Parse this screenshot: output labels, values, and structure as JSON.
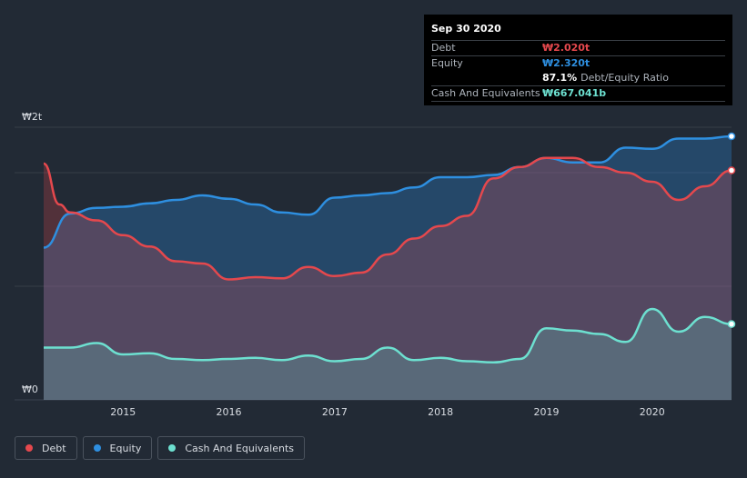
{
  "tooltip": {
    "date": "Sep 30 2020",
    "debt_label": "Debt",
    "debt_value": "₩2.020t",
    "equity_label": "Equity",
    "equity_value": "₩2.320t",
    "ratio_value": "87.1%",
    "ratio_label": "Debt/Equity Ratio",
    "cash_label": "Cash And Equivalents",
    "cash_value": "₩667.041b"
  },
  "legend": [
    {
      "label": "Debt",
      "color": "#e5484d"
    },
    {
      "label": "Equity",
      "color": "#2e8fe0"
    },
    {
      "label": "Cash And Equivalents",
      "color": "#6de0d0"
    }
  ],
  "chart_data": {
    "type": "area",
    "ylim": [
      0,
      2.4
    ],
    "y_tick_labels": [
      {
        "value": 2.4,
        "label": "₩2t"
      },
      {
        "value": 0,
        "label": "₩0"
      }
    ],
    "xlim": [
      2014.25,
      2020.75
    ],
    "x_ticks": [
      2015,
      2016,
      2017,
      2018,
      2019,
      2020
    ],
    "grid": true,
    "series": [
      {
        "name": "Debt",
        "color": "#e5484d",
        "x": [
          2014.25,
          2014.4,
          2014.5,
          2014.75,
          2015.0,
          2015.25,
          2015.5,
          2015.75,
          2016.0,
          2016.25,
          2016.5,
          2016.75,
          2017.0,
          2017.25,
          2017.5,
          2017.75,
          2018.0,
          2018.25,
          2018.5,
          2018.75,
          2019.0,
          2019.25,
          2019.5,
          2019.75,
          2020.0,
          2020.25,
          2020.5,
          2020.75
        ],
        "y": [
          2.08,
          1.72,
          1.65,
          1.58,
          1.45,
          1.35,
          1.22,
          1.2,
          1.06,
          1.08,
          1.07,
          1.17,
          1.09,
          1.12,
          1.28,
          1.42,
          1.53,
          1.62,
          1.95,
          2.05,
          2.13,
          2.13,
          2.05,
          2.0,
          1.92,
          1.76,
          1.88,
          2.02
        ]
      },
      {
        "name": "Equity",
        "color": "#2e8fe0",
        "x": [
          2014.25,
          2014.5,
          2014.75,
          2015.0,
          2015.25,
          2015.5,
          2015.75,
          2016.0,
          2016.25,
          2016.5,
          2016.75,
          2017.0,
          2017.25,
          2017.5,
          2017.75,
          2018.0,
          2018.25,
          2018.5,
          2018.75,
          2019.0,
          2019.25,
          2019.5,
          2019.75,
          2020.0,
          2020.25,
          2020.5,
          2020.75
        ],
        "y": [
          1.34,
          1.64,
          1.69,
          1.7,
          1.73,
          1.76,
          1.8,
          1.77,
          1.72,
          1.65,
          1.63,
          1.78,
          1.8,
          1.82,
          1.87,
          1.96,
          1.96,
          1.98,
          2.05,
          2.13,
          2.09,
          2.09,
          2.22,
          2.21,
          2.3,
          2.3,
          2.32
        ]
      },
      {
        "name": "Cash And Equivalents",
        "color": "#6de0d0",
        "x": [
          2014.25,
          2014.5,
          2014.75,
          2015.0,
          2015.25,
          2015.5,
          2015.75,
          2016.0,
          2016.25,
          2016.5,
          2016.75,
          2017.0,
          2017.25,
          2017.5,
          2017.75,
          2018.0,
          2018.25,
          2018.5,
          2018.75,
          2019.0,
          2019.25,
          2019.5,
          2019.75,
          2020.0,
          2020.25,
          2020.5,
          2020.75
        ],
        "y": [
          0.46,
          0.46,
          0.5,
          0.4,
          0.41,
          0.36,
          0.35,
          0.36,
          0.37,
          0.35,
          0.39,
          0.34,
          0.36,
          0.46,
          0.35,
          0.37,
          0.34,
          0.33,
          0.36,
          0.63,
          0.61,
          0.58,
          0.51,
          0.8,
          0.6,
          0.73,
          0.667
        ]
      }
    ]
  }
}
